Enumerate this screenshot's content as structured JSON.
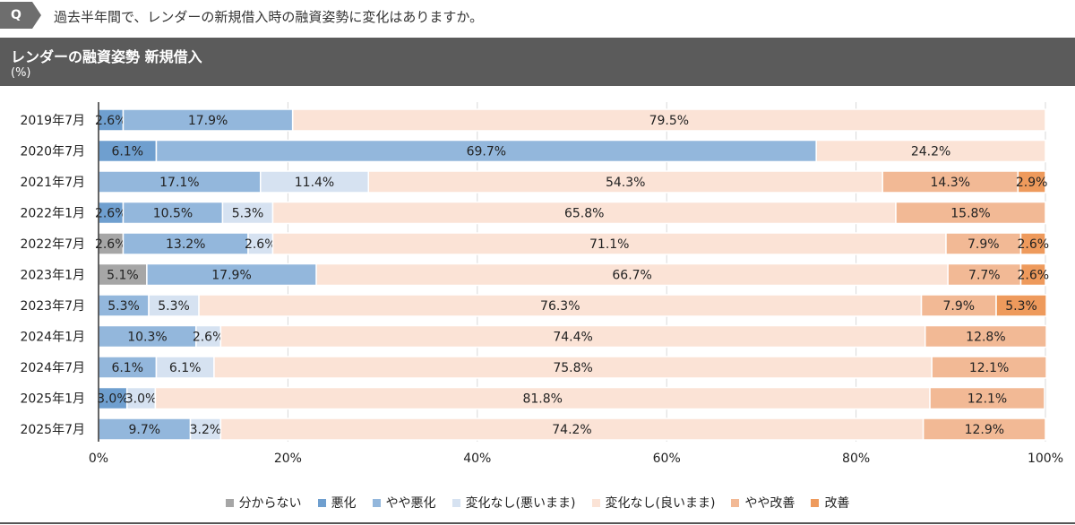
{
  "question": {
    "badge": "Q",
    "text": "過去半年間で、レンダーの新規借入時の融資姿勢に変化はありますか。"
  },
  "header": {
    "title": "レンダーの融資姿勢 新規借入",
    "unit": "(%)"
  },
  "chart_data": {
    "type": "bar",
    "orientation": "horizontal",
    "stacked": true,
    "title": "レンダーの融資姿勢 新規借入",
    "ylabel": "(%)",
    "xlim": [
      0,
      100
    ],
    "xticks": [
      "0%",
      "20%",
      "40%",
      "60%",
      "80%",
      "100%"
    ],
    "categories": [
      "2019年7月",
      "2020年7月",
      "2021年7月",
      "2022年1月",
      "2022年7月",
      "2023年1月",
      "2023年7月",
      "2024年1月",
      "2024年7月",
      "2025年1月",
      "2025年7月"
    ],
    "series": [
      {
        "name": "分からない",
        "color": "#a6a6a6",
        "values": [
          0,
          0,
          0,
          0,
          2.6,
          5.1,
          0,
          0,
          0,
          0,
          0
        ]
      },
      {
        "name": "悪化",
        "color": "#6f9fcf",
        "values": [
          2.6,
          6.1,
          0,
          2.6,
          0,
          0,
          0,
          0,
          0,
          3.0,
          0
        ]
      },
      {
        "name": "やや悪化",
        "color": "#93b7dc",
        "values": [
          17.9,
          69.7,
          17.1,
          10.5,
          13.2,
          17.9,
          5.3,
          10.3,
          6.1,
          0,
          9.7
        ]
      },
      {
        "name": "変化なし(悪いまま)",
        "color": "#d6e2f1",
        "values": [
          0,
          0,
          11.4,
          5.3,
          2.6,
          0,
          5.3,
          2.6,
          6.1,
          3.0,
          3.2
        ]
      },
      {
        "name": "変化なし(良いまま)",
        "color": "#fbe3d6",
        "values": [
          79.5,
          24.2,
          54.3,
          65.8,
          71.1,
          66.7,
          76.3,
          74.4,
          75.8,
          81.8,
          74.2
        ]
      },
      {
        "name": "やや改善",
        "color": "#f2b995",
        "values": [
          0,
          0,
          14.3,
          15.8,
          7.9,
          7.7,
          7.9,
          12.8,
          12.1,
          12.1,
          12.9
        ]
      },
      {
        "name": "改善",
        "color": "#ee9a5c",
        "values": [
          0,
          0,
          2.9,
          0,
          2.6,
          2.6,
          5.3,
          0,
          0,
          0,
          0
        ]
      }
    ],
    "legend_position": "bottom",
    "grid": true
  }
}
